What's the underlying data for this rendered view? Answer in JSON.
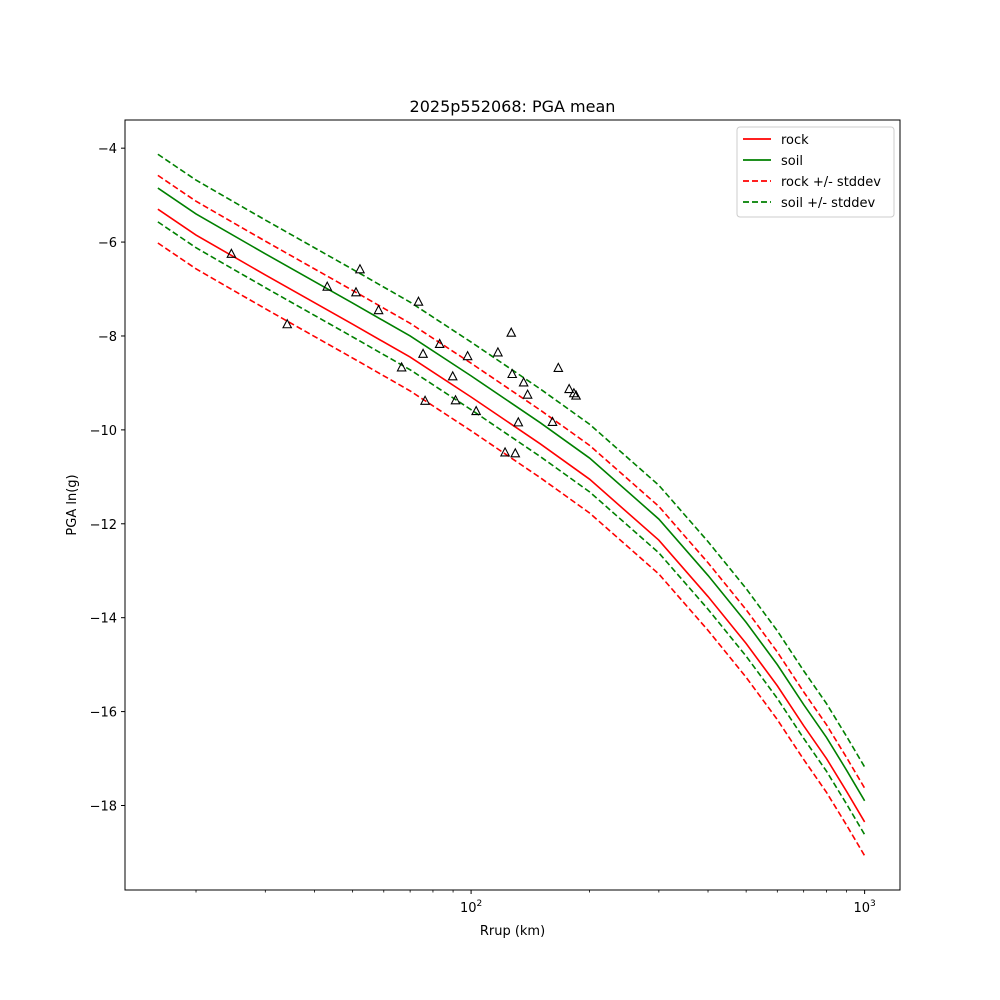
{
  "chart_data": {
    "type": "line",
    "title": "2025p552068: PGA mean",
    "xlabel": "Rrup (km)",
    "ylabel": "PGA ln(g)",
    "x_scale": "log",
    "xlim": [
      13.2,
      1230
    ],
    "ylim": [
      -19.8,
      -3.4
    ],
    "grid": false,
    "legend_position": "upper right",
    "x_ticks": [
      {
        "value": 100,
        "base": "10",
        "exp": "2"
      },
      {
        "value": 1000,
        "base": "10",
        "exp": "3"
      }
    ],
    "y_ticks": [
      {
        "value": -4,
        "label": "−4"
      },
      {
        "value": -6,
        "label": "−6"
      },
      {
        "value": -8,
        "label": "−8"
      },
      {
        "value": -10,
        "label": "−10"
      },
      {
        "value": -12,
        "label": "−12"
      },
      {
        "value": -14,
        "label": "−14"
      },
      {
        "value": -16,
        "label": "−16"
      },
      {
        "value": -18,
        "label": "−18"
      }
    ],
    "series": [
      {
        "name": "rock",
        "color": "#ff0000",
        "style": "solid",
        "x": [
          16,
          20,
          30,
          50,
          70,
          100,
          150,
          200,
          300,
          400,
          500,
          600,
          700,
          800,
          900,
          1000
        ],
        "y": [
          -5.3,
          -5.85,
          -6.7,
          -7.75,
          -8.45,
          -9.3,
          -10.3,
          -11.05,
          -12.35,
          -13.55,
          -14.55,
          -15.45,
          -16.3,
          -17.0,
          -17.7,
          -18.35
        ]
      },
      {
        "name": "soil",
        "color": "#008000",
        "style": "solid",
        "x": [
          16,
          20,
          30,
          50,
          70,
          100,
          150,
          200,
          300,
          400,
          500,
          600,
          700,
          800,
          900,
          1000
        ],
        "y": [
          -4.85,
          -5.4,
          -6.25,
          -7.3,
          -8.0,
          -8.85,
          -9.85,
          -10.6,
          -11.9,
          -13.1,
          -14.1,
          -15.0,
          -15.85,
          -16.55,
          -17.25,
          -17.9
        ]
      },
      {
        "name": "rock +/- stddev",
        "color": "#ff0000",
        "style": "dashed",
        "x": [
          16,
          20,
          30,
          50,
          70,
          100,
          150,
          200,
          300,
          400,
          500,
          600,
          700,
          800,
          900,
          1000
        ],
        "y": [
          -4.58,
          -5.13,
          -5.98,
          -7.03,
          -7.73,
          -8.58,
          -9.58,
          -10.33,
          -11.63,
          -12.83,
          -13.83,
          -14.73,
          -15.58,
          -16.28,
          -16.98,
          -17.63
        ]
      },
      {
        "color": "#ff0000",
        "style": "dashed",
        "x": [
          16,
          20,
          30,
          50,
          70,
          100,
          150,
          200,
          300,
          400,
          500,
          600,
          700,
          800,
          900,
          1000
        ],
        "y": [
          -6.02,
          -6.57,
          -7.42,
          -8.47,
          -9.17,
          -10.02,
          -11.02,
          -11.77,
          -13.07,
          -14.27,
          -15.27,
          -16.17,
          -17.02,
          -17.72,
          -18.42,
          -19.07
        ]
      },
      {
        "name": "soil +/- stddev",
        "color": "#008000",
        "style": "dashed",
        "x": [
          16,
          20,
          30,
          50,
          70,
          100,
          150,
          200,
          300,
          400,
          500,
          600,
          700,
          800,
          900,
          1000
        ],
        "y": [
          -4.13,
          -4.68,
          -5.53,
          -6.58,
          -7.28,
          -8.13,
          -9.13,
          -9.88,
          -11.18,
          -12.38,
          -13.38,
          -14.28,
          -15.13,
          -15.83,
          -16.53,
          -17.18
        ]
      },
      {
        "color": "#008000",
        "style": "dashed",
        "x": [
          16,
          20,
          30,
          50,
          70,
          100,
          150,
          200,
          300,
          400,
          500,
          600,
          700,
          800,
          900,
          1000
        ],
        "y": [
          -5.57,
          -6.12,
          -6.97,
          -8.02,
          -8.72,
          -9.57,
          -10.57,
          -11.32,
          -12.62,
          -13.82,
          -14.82,
          -15.72,
          -16.57,
          -17.27,
          -17.97,
          -18.62
        ]
      }
    ],
    "observations": {
      "marker": "triangle",
      "color": "#000000",
      "x": [
        24.6,
        34.1,
        43.1,
        51.0,
        52.2,
        58.2,
        66.6,
        73.5,
        75.5,
        76.4,
        83.2,
        89.8,
        91.3,
        98.0,
        103.0,
        117.0,
        122.0,
        126.5,
        127.2,
        129.5,
        131.8,
        136.0,
        139.2,
        161.0,
        166.6,
        177.5,
        182.5,
        184.8
      ],
      "y": [
        -6.25,
        -7.75,
        -6.95,
        -7.07,
        -6.58,
        -7.45,
        -8.67,
        -7.27,
        -8.38,
        -9.38,
        -8.17,
        -8.86,
        -9.37,
        -8.43,
        -9.6,
        -8.35,
        -10.48,
        -7.93,
        -8.81,
        -10.5,
        -9.84,
        -8.99,
        -9.25,
        -9.83,
        -8.68,
        -9.13,
        -9.22,
        -9.27
      ]
    }
  }
}
